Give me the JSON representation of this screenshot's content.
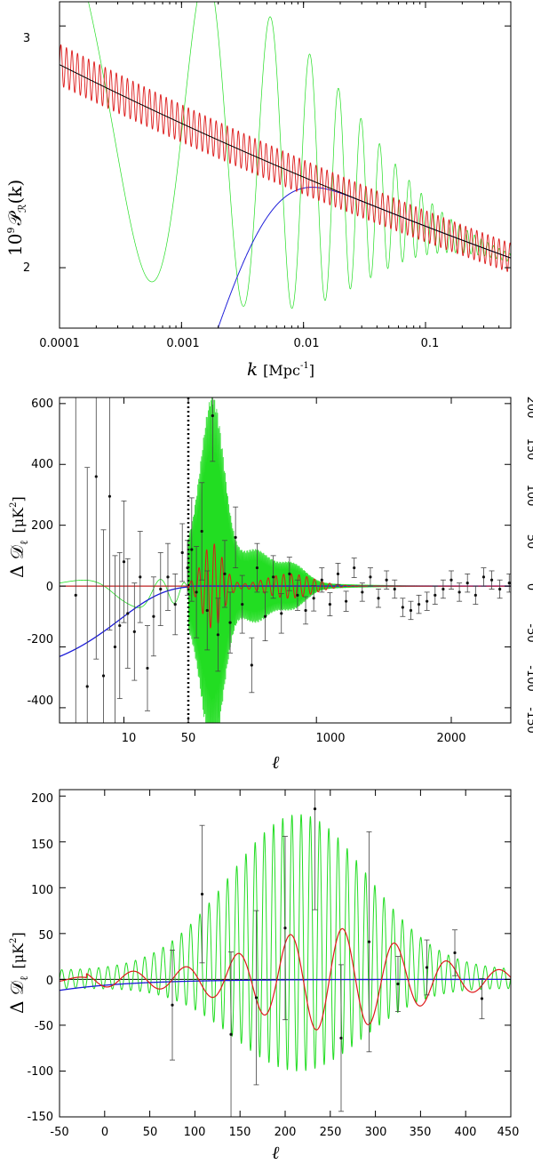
{
  "colors": {
    "green": "#22dd22",
    "red": "#dd1a1a",
    "blue": "#1a1ad8",
    "black": "#000000",
    "data": "#111111"
  },
  "chart_data": [
    {
      "type": "line",
      "title": "",
      "xscale": "log",
      "xlim": [
        0.0001,
        0.5
      ],
      "ylim": [
        1.75,
        3.1
      ],
      "xticks": [
        "0.0001",
        "0.001",
        "0.01",
        "0.1"
      ],
      "yticks": [
        "2",
        "3"
      ],
      "ylabel": {
        "pre": "10",
        "exp": "9",
        "sym": "𝒫",
        "sub": "ℛ",
        "post": "(k)"
      },
      "xlabel": {
        "var": "k",
        "unit": "[Mpc",
        "exp": "-1",
        "close": "]"
      },
      "series": [
        {
          "name": "green",
          "shape": "oscillating feature, damped",
          "color": "green"
        },
        {
          "name": "red",
          "shape": "small log-periodic oscillation",
          "color": "red"
        },
        {
          "name": "blue",
          "shape": "infrared cutoff",
          "color": "blue"
        },
        {
          "name": "black",
          "shape": "power law",
          "color": "black",
          "values": {
            "k_start": 0.0001,
            "k_end": 0.5,
            "P_start": 2.84,
            "P_end": 2.04
          }
        }
      ]
    },
    {
      "type": "line",
      "title": "",
      "xscale": "hybrid: log for l<50, linear above",
      "xlim": [
        2,
        2500
      ],
      "ylim_left": [
        -450,
        620
      ],
      "ylim_right": [
        -150,
        207
      ],
      "xticks": [
        "10",
        "50",
        "1000",
        "2000"
      ],
      "yticks_left": [
        "-400",
        "-200",
        "0",
        "200",
        "400",
        "600"
      ],
      "yticks_right": [
        "-150",
        "-100",
        "-50",
        "0",
        "50",
        "100",
        "150",
        "200"
      ],
      "ylabel": {
        "text": "Δ 𝒟",
        "sub": "ℓ",
        "unit": "[μK",
        "exp": "2",
        "close": "]"
      },
      "xlabel": "ℓ",
      "divider_at": 50,
      "data_points": [
        {
          "l": 3,
          "v": -30,
          "e": 700
        },
        {
          "l": 4,
          "v": -330,
          "e": 720
        },
        {
          "l": 5,
          "v": 360,
          "e": 600
        },
        {
          "l": 6,
          "v": -295,
          "e": 480
        },
        {
          "l": 7,
          "v": 295,
          "e": 440
        },
        {
          "l": 8,
          "v": -200,
          "e": 300
        },
        {
          "l": 9,
          "v": -130,
          "e": 240
        },
        {
          "l": 10,
          "v": 80,
          "e": 200
        },
        {
          "l": 11,
          "v": -90,
          "e": 180
        },
        {
          "l": 13,
          "v": -150,
          "e": 160
        },
        {
          "l": 15,
          "v": 30,
          "e": 150
        },
        {
          "l": 18,
          "v": -270,
          "e": 140
        },
        {
          "l": 21,
          "v": -100,
          "e": 130
        },
        {
          "l": 25,
          "v": -10,
          "e": 120
        },
        {
          "l": 30,
          "v": 30,
          "e": 110
        },
        {
          "l": 36,
          "v": -60,
          "e": 100
        },
        {
          "l": 43,
          "v": 110,
          "e": 95
        },
        {
          "l": 49,
          "v": 60,
          "e": 90
        },
        {
          "l": 75,
          "v": 120,
          "e": 170
        },
        {
          "l": 110,
          "v": -20,
          "e": 150
        },
        {
          "l": 150,
          "v": 180,
          "e": 160
        },
        {
          "l": 190,
          "v": -80,
          "e": 130
        },
        {
          "l": 230,
          "v": 560,
          "e": 150
        },
        {
          "l": 270,
          "v": -160,
          "e": 120
        },
        {
          "l": 320,
          "v": 40,
          "e": 110
        },
        {
          "l": 360,
          "v": -120,
          "e": 100
        },
        {
          "l": 400,
          "v": 160,
          "e": 100
        },
        {
          "l": 450,
          "v": -60,
          "e": 95
        },
        {
          "l": 520,
          "v": -260,
          "e": 90
        },
        {
          "l": 560,
          "v": 60,
          "e": 80
        },
        {
          "l": 620,
          "v": -100,
          "e": 80
        },
        {
          "l": 680,
          "v": 30,
          "e": 70
        },
        {
          "l": 740,
          "v": -90,
          "e": 65
        },
        {
          "l": 800,
          "v": 40,
          "e": 55
        },
        {
          "l": 860,
          "v": -30,
          "e": 50
        },
        {
          "l": 920,
          "v": -80,
          "e": 45
        },
        {
          "l": 980,
          "v": -40,
          "e": 42
        },
        {
          "l": 1040,
          "v": 20,
          "e": 40
        },
        {
          "l": 1100,
          "v": -60,
          "e": 38
        },
        {
          "l": 1160,
          "v": 40,
          "e": 35
        },
        {
          "l": 1220,
          "v": -50,
          "e": 33
        },
        {
          "l": 1280,
          "v": 60,
          "e": 32
        },
        {
          "l": 1340,
          "v": -20,
          "e": 30
        },
        {
          "l": 1400,
          "v": 30,
          "e": 30
        },
        {
          "l": 1460,
          "v": -40,
          "e": 30
        },
        {
          "l": 1520,
          "v": 20,
          "e": 30
        },
        {
          "l": 1580,
          "v": -10,
          "e": 30
        },
        {
          "l": 1640,
          "v": -70,
          "e": 30
        },
        {
          "l": 1700,
          "v": -80,
          "e": 30
        },
        {
          "l": 1760,
          "v": -60,
          "e": 30
        },
        {
          "l": 1820,
          "v": -50,
          "e": 30
        },
        {
          "l": 1880,
          "v": -30,
          "e": 30
        },
        {
          "l": 1940,
          "v": -10,
          "e": 30
        },
        {
          "l": 2000,
          "v": 20,
          "e": 30
        },
        {
          "l": 2060,
          "v": -20,
          "e": 30
        },
        {
          "l": 2120,
          "v": 10,
          "e": 30
        },
        {
          "l": 2180,
          "v": -30,
          "e": 30
        },
        {
          "l": 2240,
          "v": 30,
          "e": 30
        },
        {
          "l": 2300,
          "v": 20,
          "e": 30
        },
        {
          "l": 2360,
          "v": -10,
          "e": 30
        },
        {
          "l": 2430,
          "v": 10,
          "e": 30
        }
      ]
    },
    {
      "type": "line",
      "title": "",
      "xscale": "linear",
      "xlim": [
        -50,
        450
      ],
      "ylim": [
        -150,
        207
      ],
      "xticks": [
        "-50",
        "0",
        "50",
        "100",
        "150",
        "200",
        "250",
        "300",
        "350",
        "400",
        "450"
      ],
      "yticks": [
        "-150",
        "-100",
        "-50",
        "0",
        "50",
        "100",
        "150",
        "200"
      ],
      "ylabel": {
        "text": "Δ 𝒟",
        "sub": "ℓ",
        "unit": "[μK",
        "exp": "2",
        "close": "]"
      },
      "xlabel": "ℓ",
      "data_points": [
        {
          "l": 75,
          "v": -28,
          "e": 60
        },
        {
          "l": 108,
          "v": 93,
          "e": 75
        },
        {
          "l": 140,
          "v": -60,
          "e": 90
        },
        {
          "l": 168,
          "v": -20,
          "e": 95
        },
        {
          "l": 200,
          "v": 56,
          "e": 100
        },
        {
          "l": 233,
          "v": 186,
          "e": 110
        },
        {
          "l": 262,
          "v": -64,
          "e": 80
        },
        {
          "l": 293,
          "v": 41,
          "e": 120
        },
        {
          "l": 325,
          "v": -5,
          "e": 30
        },
        {
          "l": 357,
          "v": 13,
          "e": 30
        },
        {
          "l": 388,
          "v": 29,
          "e": 25
        },
        {
          "l": 418,
          "v": -21,
          "e": 22
        }
      ]
    }
  ]
}
